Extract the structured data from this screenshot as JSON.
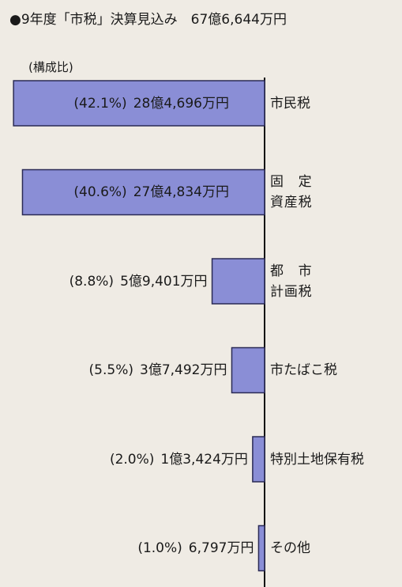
{
  "chart_data": {
    "type": "hbar",
    "title": "●9年度「市税」決算見込み　67億6,644万円",
    "subtitle": "(構成比)",
    "categories": [
      "市民税",
      "固定\n資産税",
      "都市\n計画税",
      "市たばこ税",
      "特別土地保有税",
      "その他"
    ],
    "values": [
      42.1,
      40.6,
      8.8,
      5.5,
      2.0,
      1.0
    ],
    "value_labels": [
      "(42.1%)",
      "(40.6%)",
      "(8.8%)",
      "(5.5%)",
      "(2.0%)",
      "(1.0%)"
    ],
    "amounts": [
      284696,
      274834,
      59401,
      37492,
      13424,
      6797
    ],
    "amount_labels": [
      "28億4,696万円",
      "27億4,834万円",
      "5億9,401万円",
      "3億7,492万円",
      "1億3,424万円",
      "6,797万円"
    ],
    "color": "#8a8ed6"
  }
}
